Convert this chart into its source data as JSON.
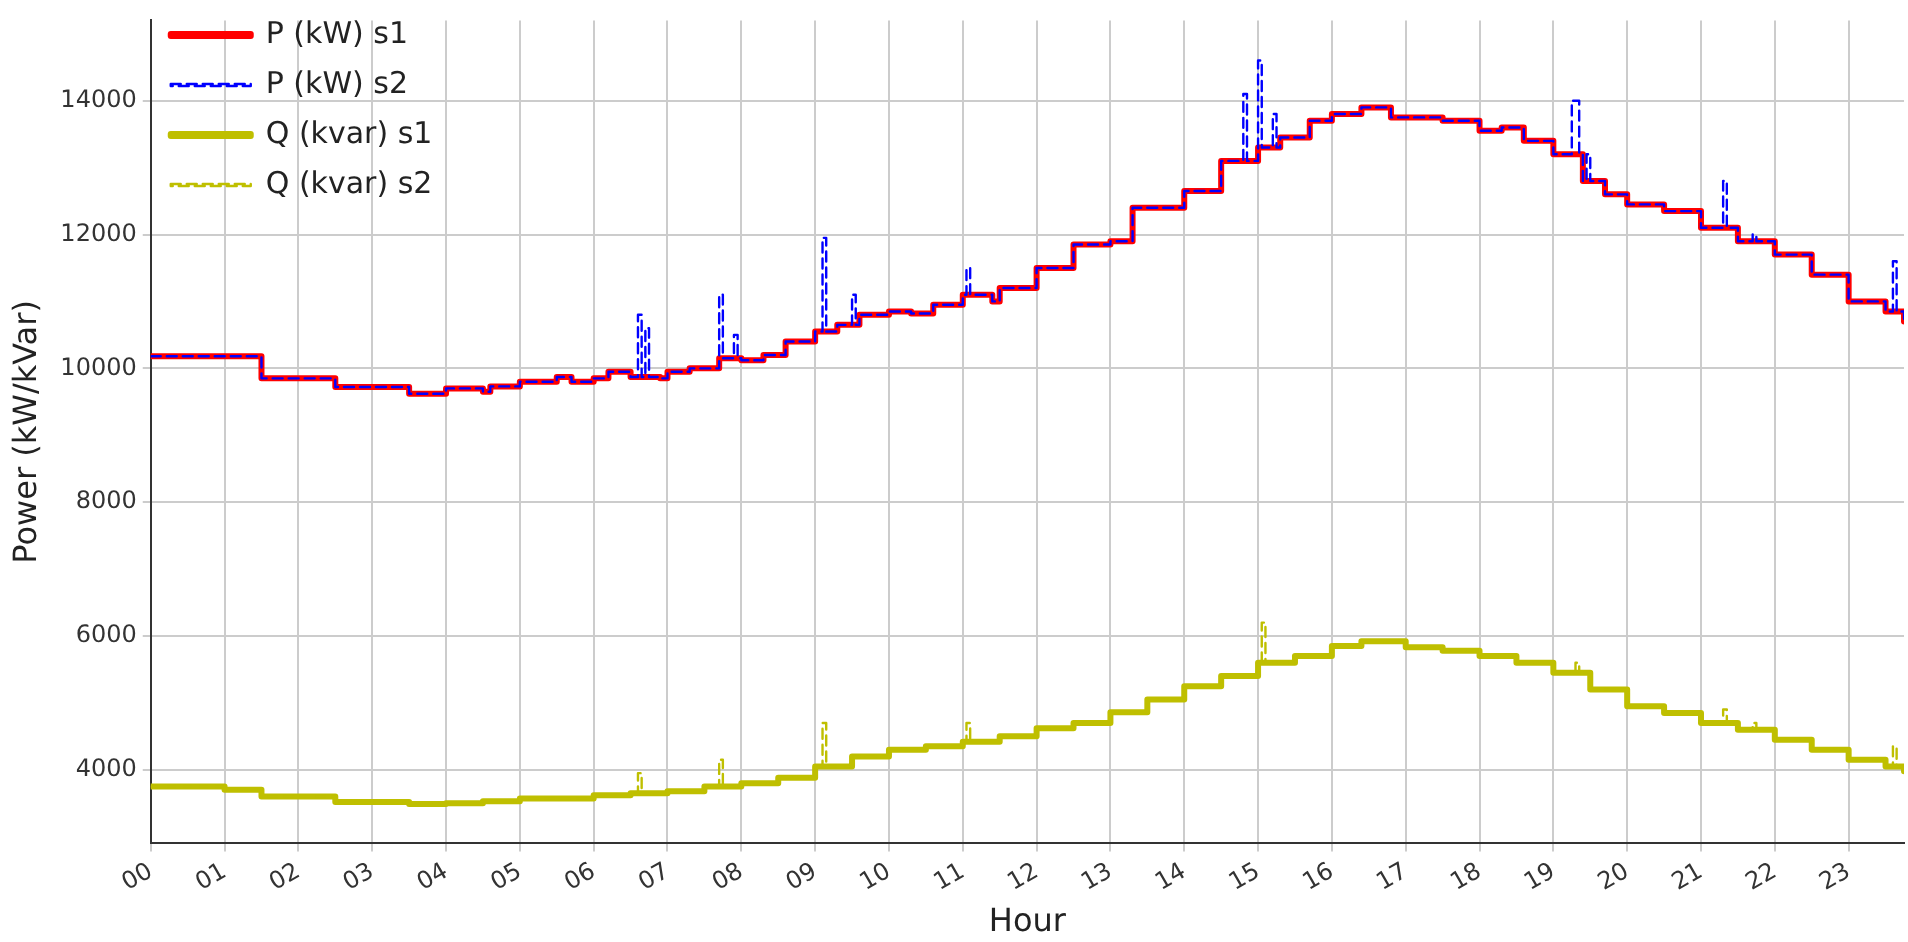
{
  "chart_data": {
    "type": "step",
    "xlabel": "Hour",
    "ylabel": "Power (kW/kVar)",
    "xlim": [
      0,
      23.75
    ],
    "ylim": [
      2900,
      15200
    ],
    "xticks": [
      {
        "value": 0,
        "label": "00"
      },
      {
        "value": 1,
        "label": "01"
      },
      {
        "value": 2,
        "label": "02"
      },
      {
        "value": 3,
        "label": "03"
      },
      {
        "value": 4,
        "label": "04"
      },
      {
        "value": 5,
        "label": "05"
      },
      {
        "value": 6,
        "label": "06"
      },
      {
        "value": 7,
        "label": "07"
      },
      {
        "value": 8,
        "label": "08"
      },
      {
        "value": 9,
        "label": "09"
      },
      {
        "value": 10,
        "label": "10"
      },
      {
        "value": 11,
        "label": "11"
      },
      {
        "value": 12,
        "label": "12"
      },
      {
        "value": 13,
        "label": "13"
      },
      {
        "value": 14,
        "label": "14"
      },
      {
        "value": 15,
        "label": "15"
      },
      {
        "value": 16,
        "label": "16"
      },
      {
        "value": 17,
        "label": "17"
      },
      {
        "value": 18,
        "label": "18"
      },
      {
        "value": 19,
        "label": "19"
      },
      {
        "value": 20,
        "label": "20"
      },
      {
        "value": 21,
        "label": "21"
      },
      {
        "value": 22,
        "label": "22"
      },
      {
        "value": 23,
        "label": "23"
      }
    ],
    "yticks": [
      4000,
      6000,
      8000,
      10000,
      12000,
      14000
    ],
    "grid": true,
    "legend": "top left",
    "marker": "none",
    "series": [
      {
        "name": "P (kW) s1",
        "color": "#ff0000",
        "line_style": "solid",
        "x": [
          0,
          1.5,
          2.5,
          3.5,
          4,
          4.5,
          4.6,
          5,
          5.5,
          5.7,
          6,
          6.2,
          6.5,
          6.9,
          7,
          7.3,
          7.7,
          8,
          8.3,
          8.6,
          9,
          9.3,
          9.6,
          10,
          10.3,
          10.6,
          11,
          11.4,
          11.5,
          12,
          12.5,
          13,
          13.3,
          14,
          14.5,
          15,
          15.3,
          15.7,
          16,
          16.4,
          16.8,
          17.5,
          18,
          18.3,
          18.6,
          19,
          19.4,
          19.7,
          20,
          20.5,
          21,
          21.5,
          22,
          22.5,
          23,
          23.5,
          23.75
        ],
        "values": [
          10180,
          9850,
          9720,
          9620,
          9700,
          9650,
          9730,
          9800,
          9870,
          9800,
          9850,
          9950,
          9870,
          9850,
          9950,
          10000,
          10150,
          10120,
          10200,
          10400,
          10550,
          10650,
          10800,
          10850,
          10820,
          10950,
          11100,
          11000,
          11200,
          11500,
          11850,
          11900,
          12400,
          12650,
          13100,
          13300,
          13450,
          13700,
          13800,
          13900,
          13750,
          13700,
          13550,
          13600,
          13400,
          13200,
          12800,
          12600,
          12450,
          12350,
          12100,
          11900,
          11700,
          11400,
          11000,
          10850,
          10700
        ]
      },
      {
        "name": "P (kW) s2",
        "color": "#0000ff",
        "line_style": "dashed",
        "x": [
          0,
          1.5,
          2.5,
          3.5,
          4,
          4.5,
          4.6,
          5,
          5.5,
          5.7,
          6,
          6.2,
          6.5,
          6.6,
          6.65,
          6.7,
          6.75,
          6.9,
          7,
          7.3,
          7.7,
          7.75,
          7.9,
          7.95,
          8,
          8.3,
          8.6,
          9,
          9.1,
          9.15,
          9.3,
          9.5,
          9.55,
          9.6,
          10,
          10.3,
          10.6,
          11,
          11.05,
          11.1,
          11.4,
          11.5,
          12,
          12.5,
          13,
          13.3,
          14,
          14.5,
          14.8,
          14.85,
          15,
          15.05,
          15.2,
          15.25,
          15.3,
          15.7,
          16,
          16.4,
          16.8,
          17.5,
          18,
          18.3,
          18.6,
          19,
          19.25,
          19.35,
          19.4,
          19.45,
          19.5,
          19.7,
          20,
          20.5,
          21,
          21.3,
          21.35,
          21.5,
          21.7,
          21.75,
          22,
          22.5,
          23,
          23.5,
          23.6,
          23.65,
          23.75
        ],
        "values": [
          10180,
          9850,
          9720,
          9620,
          9700,
          9650,
          9730,
          9800,
          9870,
          9800,
          9850,
          9950,
          9870,
          10800,
          9870,
          10600,
          9870,
          9850,
          9950,
          10000,
          11100,
          10150,
          10500,
          10150,
          10120,
          10200,
          10400,
          10550,
          11950,
          10550,
          10650,
          11100,
          10650,
          10800,
          10850,
          10820,
          10950,
          11100,
          11500,
          11100,
          11000,
          11200,
          11500,
          11850,
          11900,
          12400,
          12650,
          13100,
          14100,
          13100,
          14600,
          13300,
          13800,
          13300,
          13450,
          13700,
          13800,
          13900,
          13750,
          13700,
          13550,
          13600,
          13400,
          13200,
          14000,
          13200,
          12800,
          13200,
          12800,
          12600,
          12450,
          12350,
          12100,
          12800,
          12100,
          11900,
          12000,
          11900,
          11700,
          11400,
          11000,
          10850,
          11600,
          10850,
          10700
        ]
      },
      {
        "name": "Q (kvar) s1",
        "color": "#bfbf00",
        "line_style": "solid",
        "x": [
          0,
          1,
          1.5,
          2.5,
          3.5,
          4,
          4.5,
          5,
          6,
          6.5,
          7,
          7.5,
          8,
          8.5,
          9,
          9.5,
          10,
          10.5,
          11,
          11.5,
          12,
          12.5,
          13,
          13.5,
          14,
          14.5,
          15,
          15.5,
          16,
          16.4,
          17,
          17.5,
          18,
          18.5,
          19,
          19.5,
          20,
          20.5,
          21,
          21.5,
          22,
          22.5,
          23,
          23.5,
          23.75
        ],
        "values": [
          3750,
          3700,
          3600,
          3520,
          3490,
          3500,
          3530,
          3570,
          3620,
          3650,
          3680,
          3750,
          3800,
          3880,
          4050,
          4200,
          4300,
          4350,
          4420,
          4500,
          4620,
          4700,
          4860,
          5050,
          5250,
          5400,
          5600,
          5700,
          5850,
          5920,
          5830,
          5780,
          5700,
          5600,
          5450,
          5200,
          4950,
          4850,
          4700,
          4600,
          4450,
          4300,
          4150,
          4050,
          3980
        ]
      },
      {
        "name": "Q (kvar) s2",
        "color": "#bfbf00",
        "line_style": "dashed",
        "x": [
          0,
          1,
          1.5,
          2.5,
          3.5,
          4,
          4.5,
          5,
          6,
          6.5,
          6.6,
          6.65,
          7,
          7.5,
          7.7,
          7.75,
          8,
          8.5,
          9,
          9.1,
          9.15,
          9.5,
          10,
          10.5,
          11,
          11.05,
          11.1,
          11.5,
          12,
          12.5,
          13,
          13.5,
          14,
          14.5,
          15,
          15.05,
          15.1,
          15.5,
          16,
          16.4,
          17,
          17.5,
          18,
          18.5,
          19,
          19.3,
          19.35,
          19.5,
          20,
          20.5,
          21,
          21.3,
          21.35,
          21.5,
          21.7,
          21.75,
          22,
          22.5,
          23,
          23.5,
          23.6,
          23.65,
          23.75
        ],
        "values": [
          3750,
          3700,
          3600,
          3520,
          3490,
          3500,
          3530,
          3570,
          3620,
          3650,
          3950,
          3650,
          3680,
          3750,
          4150,
          3750,
          3800,
          3880,
          4050,
          4700,
          4050,
          4200,
          4300,
          4350,
          4420,
          4700,
          4420,
          4500,
          4620,
          4700,
          4860,
          5050,
          5250,
          5400,
          5600,
          6200,
          5600,
          5700,
          5850,
          5920,
          5830,
          5780,
          5700,
          5600,
          5450,
          5600,
          5450,
          5200,
          4950,
          4850,
          4700,
          4900,
          4700,
          4600,
          4700,
          4600,
          4450,
          4300,
          4150,
          4050,
          4350,
          4050,
          3980
        ]
      }
    ]
  }
}
